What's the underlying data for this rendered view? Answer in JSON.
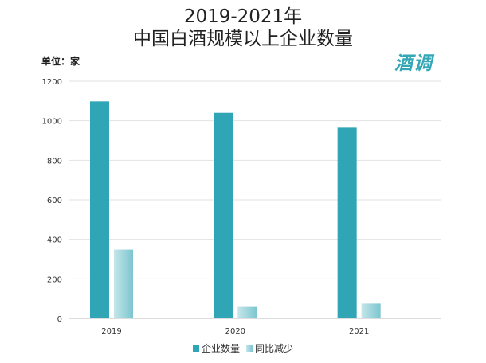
{
  "chart_data": {
    "type": "bar",
    "title_line1": "2019-2021年",
    "title_line2": "中国白酒规模以上企业数量",
    "unit_label": "单位：家",
    "brand": "酒调",
    "categories": [
      "2019",
      "2020",
      "2021"
    ],
    "series": [
      {
        "name": "企业数量",
        "values": [
          1098,
          1040,
          965
        ],
        "color": "#2fa5b5"
      },
      {
        "name": "同比减少",
        "values": [
          348,
          58,
          75
        ],
        "color": "#9fd6dc"
      }
    ],
    "ylim": [
      0,
      1200
    ],
    "yticks": [
      0,
      200,
      400,
      600,
      800,
      1000,
      1200
    ],
    "grid": true,
    "legend": "bottom-center"
  }
}
